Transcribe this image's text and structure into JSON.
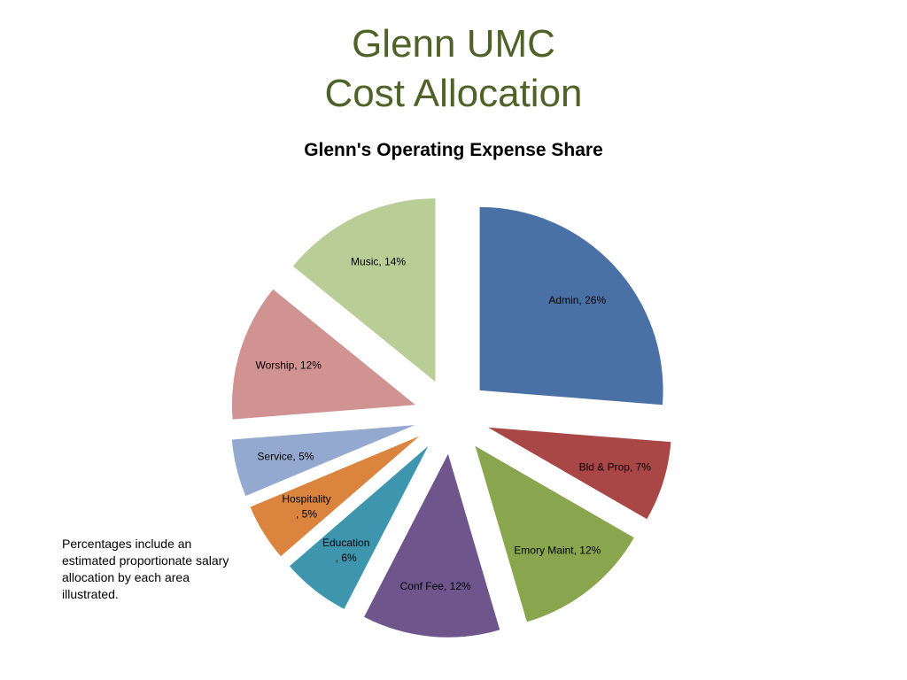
{
  "slide": {
    "title_line1": "Glenn UMC",
    "title_line2": "Cost Allocation"
  },
  "chart_data": {
    "type": "pie",
    "title": "Glenn's Operating Expense Share",
    "slices": [
      {
        "name": "Admin",
        "value": 26,
        "label_lines": [
          "Admin, 26%"
        ],
        "color": "#4a71a6"
      },
      {
        "name": "Bld & Prop",
        "value": 7,
        "label_lines": [
          "Bld & Prop, 7%"
        ],
        "color": "#a84746"
      },
      {
        "name": "Emory Maint",
        "value": 12,
        "label_lines": [
          "Emory Maint, 12%"
        ],
        "color": "#89a54e"
      },
      {
        "name": "Conf Fee",
        "value": 12,
        "label_lines": [
          "Conf Fee, 12%"
        ],
        "color": "#6e568d"
      },
      {
        "name": "Education",
        "value": 6,
        "label_lines": [
          "Education",
          ", 6%"
        ],
        "color": "#3d96ae"
      },
      {
        "name": "Hospitality",
        "value": 5,
        "label_lines": [
          "Hospitality",
          ", 5%"
        ],
        "color": "#db843d"
      },
      {
        "name": "Service",
        "value": 5,
        "label_lines": [
          "Service, 5%"
        ],
        "color": "#93a9cf"
      },
      {
        "name": "Worship",
        "value": 12,
        "label_lines": [
          "Worship, 12%"
        ],
        "color": "#d19392"
      },
      {
        "name": "Music",
        "value": 14,
        "label_lines": [
          "Music, 14%"
        ],
        "color": "#b9cd96"
      }
    ],
    "start_angle": "12 o'clock",
    "direction": "clockwise",
    "exploded": true,
    "legend": "none"
  },
  "footnote": "Percentages include an estimated proportionate salary allocation by each area illustrated."
}
